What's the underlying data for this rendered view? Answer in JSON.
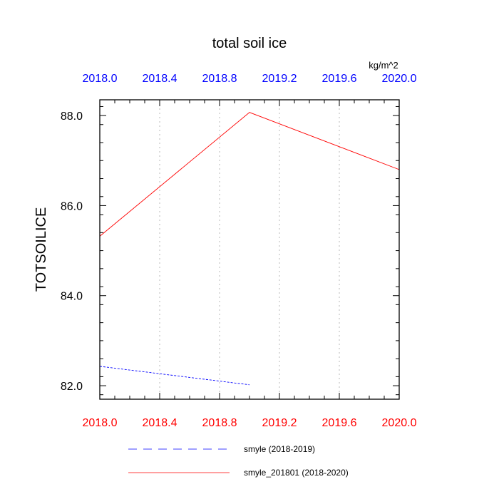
{
  "chart_data": {
    "type": "line",
    "title": "total soil ice",
    "units": "kg/m^2",
    "ylabel": "TOTSOILICE",
    "xlim": [
      2018.0,
      2020.0
    ],
    "ylim": [
      81.7,
      88.35
    ],
    "x_ticks": [
      "2018.0",
      "2018.4",
      "2018.8",
      "2019.2",
      "2019.6",
      "2020.0"
    ],
    "x_tick_values": [
      2018.0,
      2018.4,
      2018.8,
      2019.2,
      2019.6,
      2020.0
    ],
    "y_ticks": [
      "82.0",
      "84.0",
      "86.0",
      "88.0"
    ],
    "y_tick_values": [
      82.0,
      84.0,
      86.0,
      88.0
    ],
    "grid": "vertical dotted",
    "bottom_axis_color": "#ff0000",
    "top_axis_color": "#0000ff",
    "series": [
      {
        "name": "smyle (2018-2019)",
        "color": "#0000ff",
        "style": "dashed",
        "x": [
          2018.0,
          2019.0
        ],
        "y": [
          82.43,
          82.02
        ]
      },
      {
        "name": "smyle_201801 (2018-2020)",
        "color": "#ff0000",
        "style": "solid",
        "x": [
          2018.0,
          2019.0,
          2020.0
        ],
        "y": [
          85.32,
          88.07,
          86.8
        ]
      }
    ]
  }
}
